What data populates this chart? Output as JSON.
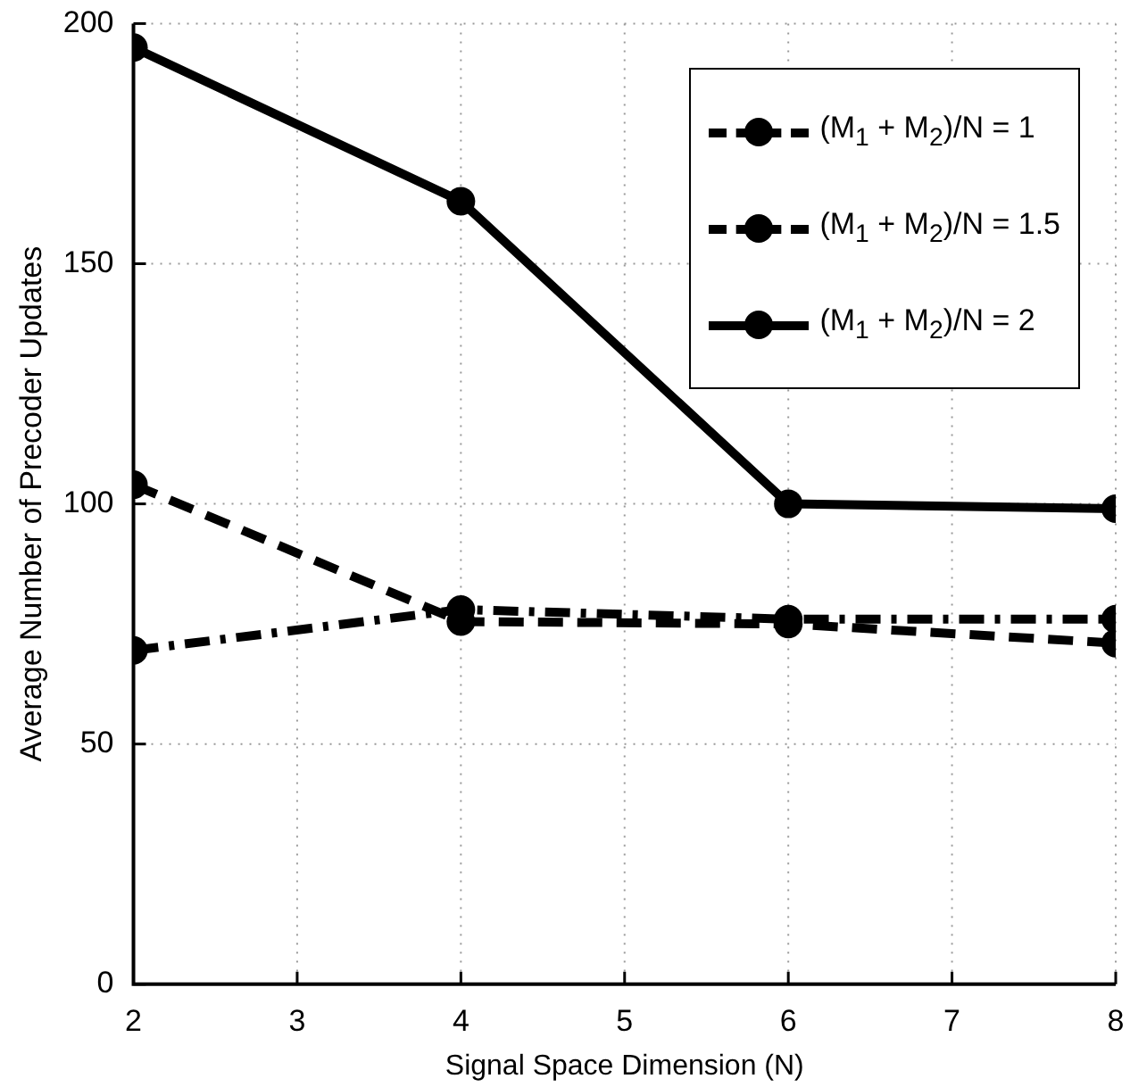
{
  "chart_data": {
    "type": "line",
    "xlabel": "Signal Space Dimension (N)",
    "ylabel": "Average Number of Precoder Updates",
    "x": [
      2,
      4,
      6,
      8
    ],
    "xlim": [
      2,
      8
    ],
    "xticks": [
      2,
      3,
      4,
      5,
      6,
      7,
      8
    ],
    "ylim": [
      0,
      200
    ],
    "yticks": [
      0,
      50,
      100,
      150,
      200
    ],
    "grid": true,
    "legend": "top right",
    "marker": "circle",
    "series": [
      {
        "name": "(M$_{1}$ + M$_{2}$)/N = 1",
        "color": "#000000",
        "line_style": "dashdot",
        "values": [
          69.5,
          78,
          76,
          76
        ]
      },
      {
        "name": "(M$_{1}$ + M$_{2}$)/N = 1.5",
        "color": "#000000",
        "line_style": "dashed",
        "values": [
          104,
          75.5,
          75,
          71
        ]
      },
      {
        "name": "(M$_{1}$ + M$_{2}$)/N = 2",
        "color": "#000000",
        "line_style": "solid",
        "values": [
          195,
          163,
          100,
          99
        ]
      }
    ]
  }
}
